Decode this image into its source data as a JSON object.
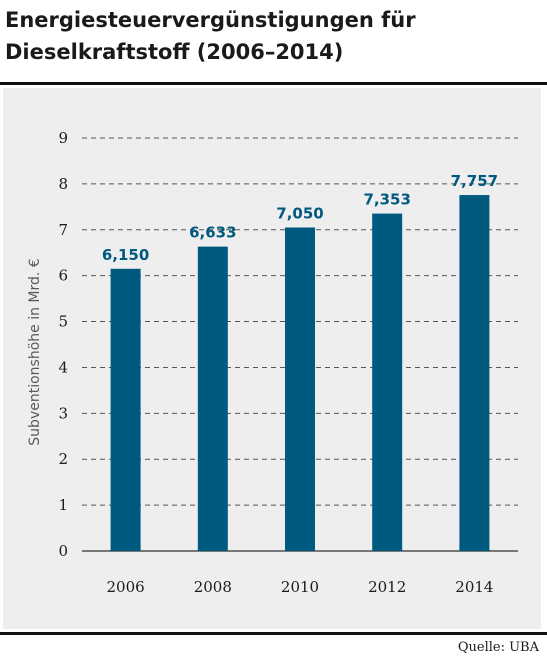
{
  "title": "Energiesteuervergünstigungen für Dieselkraftstoff (2006–2014)",
  "source": "Quelle: UBA",
  "colors": {
    "bar": "#005A7F",
    "label": "#005A7F",
    "panel": "#eeeeee",
    "grid": "#555555"
  },
  "chart_data": {
    "type": "bar",
    "categories": [
      "2006",
      "2008",
      "2010",
      "2012",
      "2014"
    ],
    "values": [
      6.15,
      6.633,
      7.05,
      7.353,
      7.757
    ],
    "value_labels": [
      "6,150",
      "6,633",
      "7,050",
      "7,353",
      "7,757"
    ],
    "ylabel": "Subventionshöhe in Mrd. €",
    "xlabel": "",
    "ylim": [
      0,
      9
    ],
    "yticks": [
      0,
      1,
      2,
      3,
      4,
      5,
      6,
      7,
      8,
      9
    ],
    "grid": true,
    "grid_style": "dashed"
  }
}
